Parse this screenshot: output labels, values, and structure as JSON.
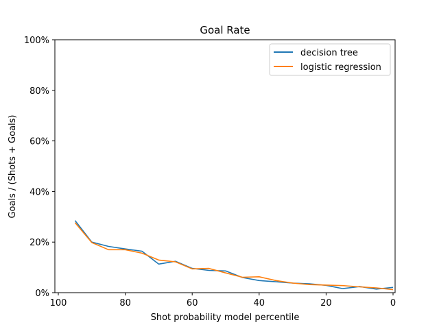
{
  "chart_data": {
    "type": "line",
    "title": "Goal Rate",
    "xlabel": "Shot probability model percentile",
    "ylabel": "Goals / (Shots + Goals)",
    "xlim": [
      100,
      0
    ],
    "ylim": [
      0,
      100
    ],
    "x_ticks": [
      100,
      80,
      60,
      40,
      20,
      0
    ],
    "x_tick_labels": [
      "100",
      "80",
      "60",
      "40",
      "20",
      "0"
    ],
    "y_ticks": [
      0,
      20,
      40,
      60,
      80,
      100
    ],
    "y_tick_labels": [
      "0%",
      "20%",
      "40%",
      "60%",
      "80%",
      "100%"
    ],
    "grid": false,
    "legend_position": "top-right",
    "x": [
      95,
      90,
      85,
      80,
      75,
      70,
      65,
      60,
      55,
      50,
      45,
      40,
      35,
      30,
      25,
      20,
      15,
      10,
      5,
      0
    ],
    "series": [
      {
        "name": "decision tree",
        "color": "#1f77b4",
        "values": [
          28.5,
          20.0,
          18.3,
          17.3,
          16.4,
          11.3,
          12.4,
          9.6,
          8.8,
          8.6,
          6.0,
          4.8,
          4.3,
          3.8,
          3.5,
          2.9,
          1.6,
          2.4,
          1.4,
          2.1
        ]
      },
      {
        "name": "logistic regression",
        "color": "#ff7f0e",
        "values": [
          27.7,
          19.8,
          17.0,
          17.0,
          15.6,
          12.9,
          12.2,
          9.4,
          9.6,
          7.8,
          6.1,
          6.3,
          4.8,
          3.8,
          3.2,
          3.0,
          2.8,
          2.3,
          1.9,
          1.2
        ]
      }
    ]
  }
}
